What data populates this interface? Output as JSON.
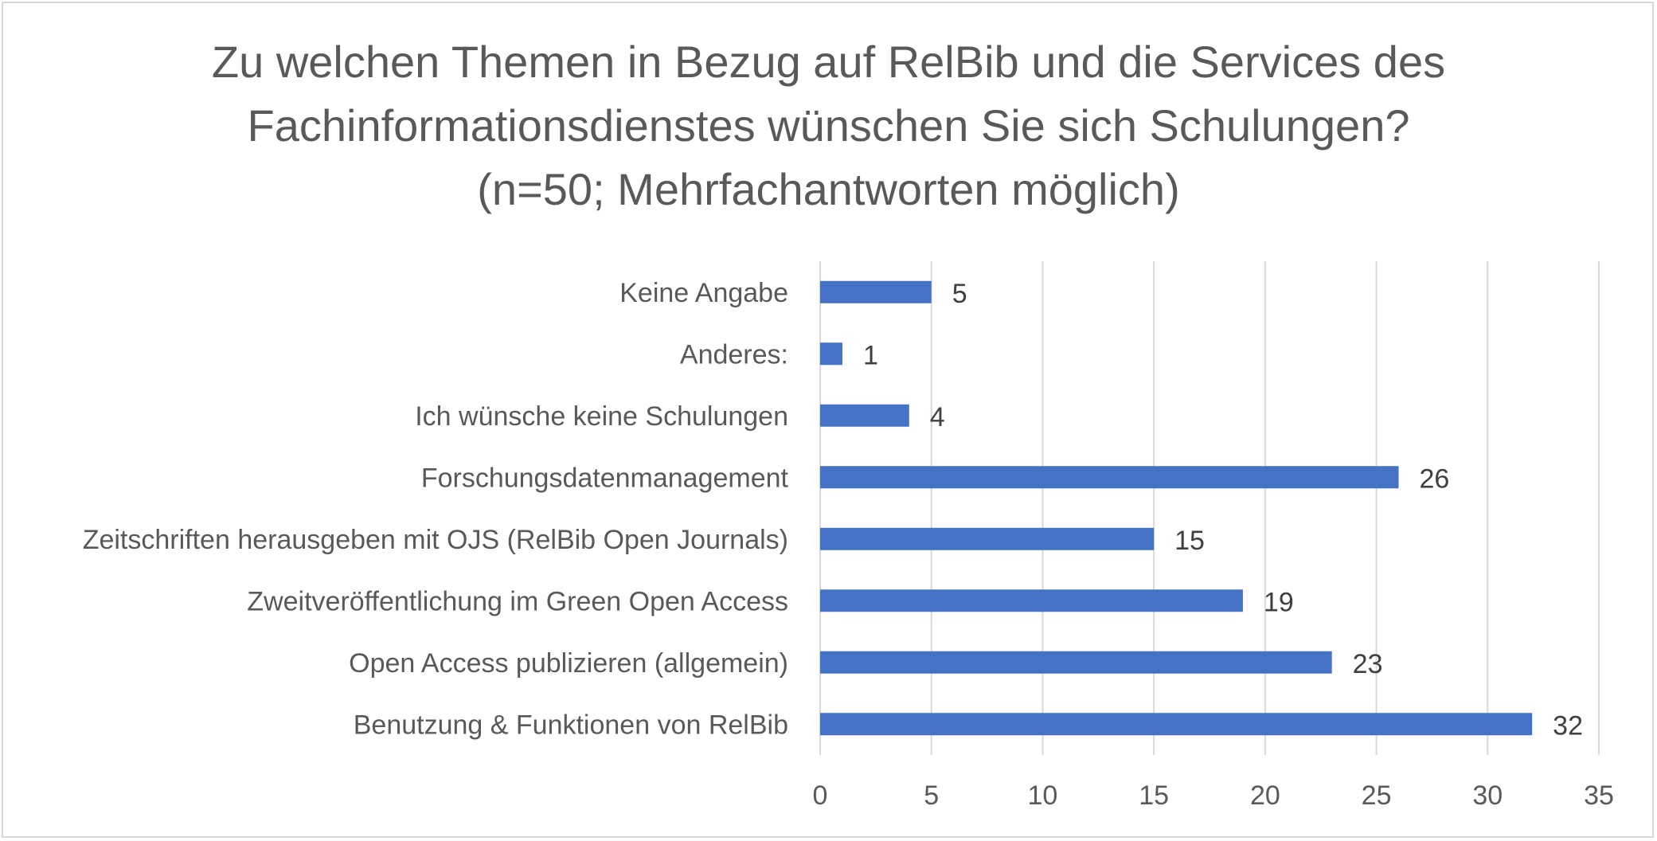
{
  "chart_data": {
    "type": "bar",
    "orientation": "horizontal",
    "title": [
      "Zu welchen Themen in Bezug auf RelBib und die Services des",
      "Fachinformationsdienstes wünschen Sie sich Schulungen?",
      "(n=50; Mehrfachantworten möglich)"
    ],
    "categories": [
      "Keine Angabe",
      "Anderes:",
      "Ich wünsche keine Schulungen",
      "Forschungsdatenmanagement",
      "Zeitschriften herausgeben mit OJS (RelBib Open Journals)",
      "Zweitveröffentlichung im Green Open Access",
      "Open Access publizieren (allgemein)",
      "Benutzung & Funktionen von RelBib"
    ],
    "values": [
      5,
      1,
      4,
      26,
      15,
      19,
      23,
      32
    ],
    "xlim": [
      0,
      35
    ],
    "xticks": [
      0,
      5,
      10,
      15,
      20,
      25,
      30,
      35
    ],
    "grid": "vertical",
    "legend": "none",
    "bar_color": "#4472c4",
    "grid_color": "#d9d9d9",
    "data_labels": true
  }
}
